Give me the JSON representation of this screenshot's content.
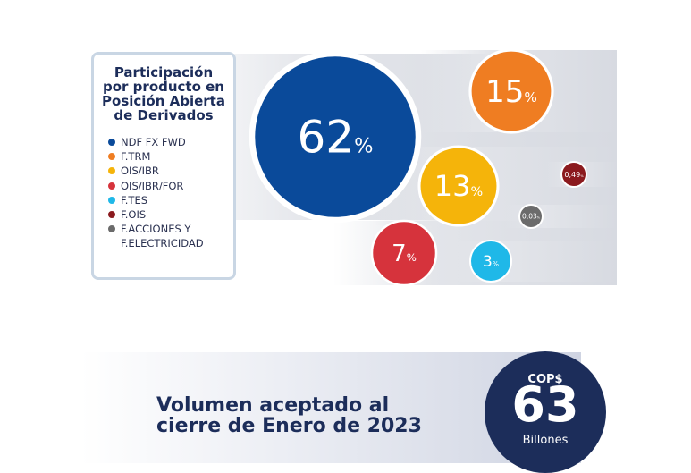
{
  "chart_data": {
    "type": "bubble",
    "title": "Participación por producto en Posición Abierta de Derivados",
    "series": [
      {
        "name": "NDF FX FWD",
        "value": 62,
        "label": "62",
        "unit": "%",
        "color": "#0a4a9a"
      },
      {
        "name": "F.TRM",
        "value": 15,
        "label": "15",
        "unit": "%",
        "color": "#ef7d22"
      },
      {
        "name": "OIS/IBR",
        "value": 13,
        "label": "13",
        "unit": "%",
        "color": "#f5b40a"
      },
      {
        "name": "OIS/IBR/FOR",
        "value": 7,
        "label": "7",
        "unit": "%",
        "color": "#d6333c"
      },
      {
        "name": "F.TES",
        "value": 3,
        "label": "3",
        "unit": "%",
        "color": "#1fb8e8"
      },
      {
        "name": "F.OIS",
        "value": 0.49,
        "label": "0,49",
        "unit": "%",
        "color": "#8b1a1e"
      },
      {
        "name": "F.ACCIONES Y F.ELECTRICIDAD",
        "value": 0.03,
        "label": "0,03",
        "unit": "%",
        "color": "#6b6b6b"
      }
    ]
  },
  "legend": {
    "title": "Participación\npor producto en\nPosición Abierta\nde Derivados",
    "items": [
      {
        "label": "NDF FX FWD",
        "color": "#0a4a9a"
      },
      {
        "label": "F.TRM",
        "color": "#ef7d22"
      },
      {
        "label": "OIS/IBR",
        "color": "#f5b40a"
      },
      {
        "label": "OIS/IBR/FOR",
        "color": "#d6333c"
      },
      {
        "label": "F.TES",
        "color": "#1fb8e8"
      },
      {
        "label": "F.OIS",
        "color": "#8b1a1e"
      },
      {
        "label": "F.ACCIONES Y",
        "color": "#6b6b6b"
      },
      {
        "label": "F.ELECTRICIDAD",
        "color": ""
      }
    ]
  },
  "volume": {
    "text": "Volumen aceptado al\ncierre de Enero de 2023",
    "currency": "COP$",
    "amount": "63",
    "unit": "Billones"
  }
}
